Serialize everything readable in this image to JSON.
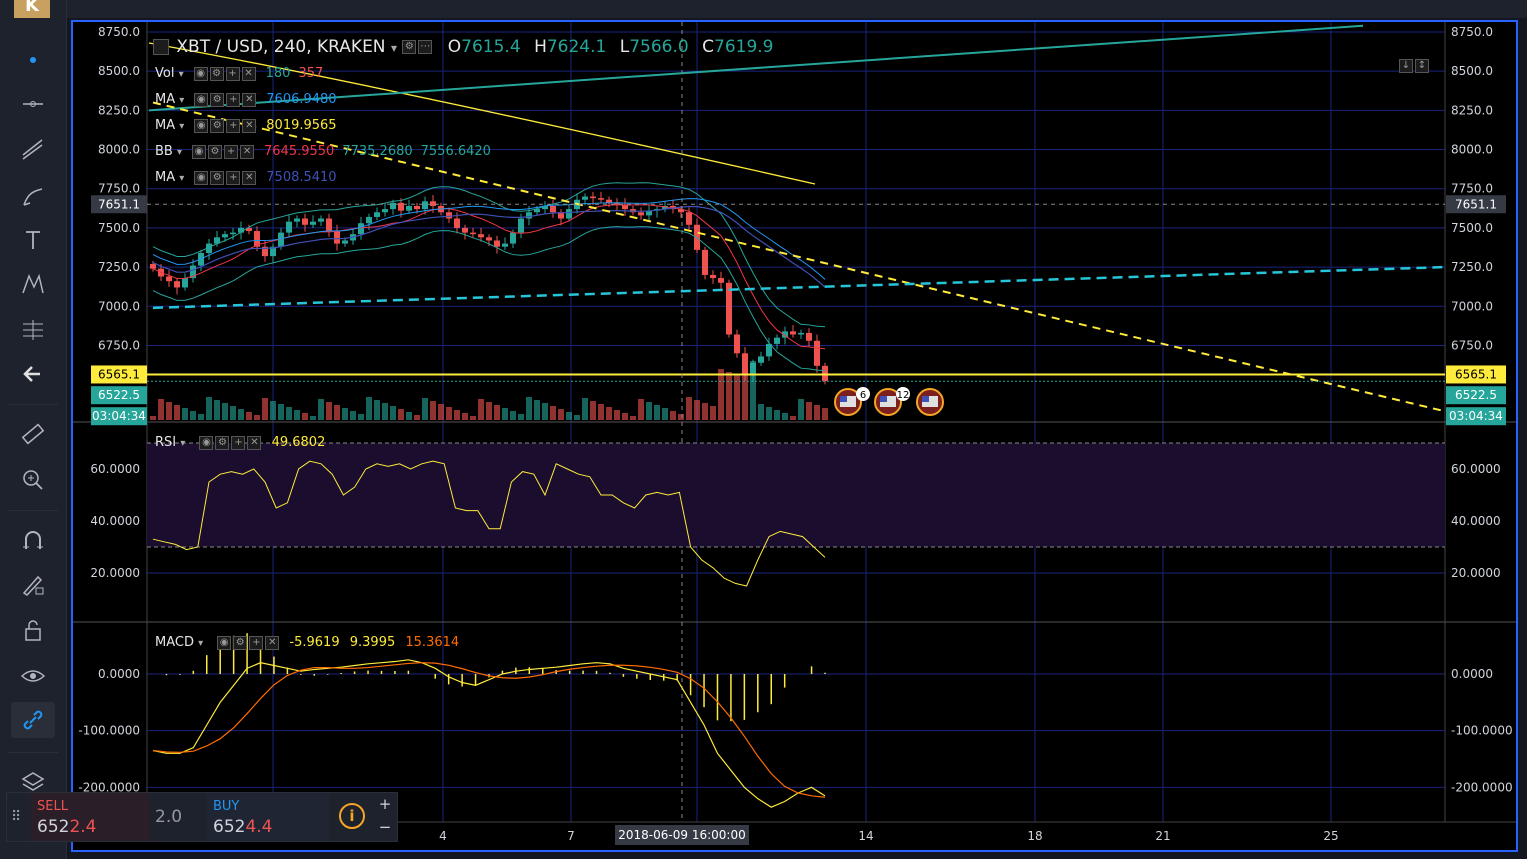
{
  "toolbar_left": {
    "logo_letter": "K",
    "tools": [
      "cursor-dot",
      "horizontal-line",
      "trend-lines",
      "brush",
      "text",
      "pattern",
      "fib",
      "back-arrow",
      "ruler",
      "zoom-in",
      "magnet",
      "draw-lock",
      "lock",
      "eye",
      "link",
      "layers"
    ]
  },
  "header": {
    "symbol": "XBT / USD, 240, KRAKEN",
    "o_label": "O",
    "o_value": "7615.4",
    "h_label": "H",
    "h_value": "7624.1",
    "l_label": "L",
    "l_value": "7566.0",
    "c_label": "C",
    "c_value": "7619.9"
  },
  "indicators": [
    {
      "name": "Vol",
      "values": [
        "180",
        "357"
      ],
      "colors": [
        "#26a69a",
        "#ef5350"
      ]
    },
    {
      "name": "MA",
      "values": [
        "7606.9480"
      ],
      "colors": [
        "#2196f3"
      ]
    },
    {
      "name": "MA",
      "values": [
        "8019.9565"
      ],
      "colors": [
        "#ffeb3b"
      ]
    },
    {
      "name": "BB",
      "values": [
        "7645.9550",
        "7735.2680",
        "7556.6420"
      ],
      "colors": [
        "#f23645",
        "#26a69a",
        "#26a69a"
      ]
    },
    {
      "name": "MA",
      "values": [
        "7508.5410"
      ],
      "colors": [
        "#3f51b5"
      ]
    }
  ],
  "price_axis": {
    "ticks": [
      "8750.0",
      "8500.0",
      "8250.0",
      "8000.0",
      "7750.0",
      "7500.0",
      "7250.0",
      "7000.0",
      "6750.0"
    ],
    "badges": [
      {
        "text": "7651.1",
        "kind": "crosshair"
      },
      {
        "text": "6565.1",
        "kind": "hline"
      },
      {
        "text": "6522.5",
        "kind": "last"
      },
      {
        "text": "03:04:34",
        "kind": "countdown"
      }
    ]
  },
  "rsi": {
    "name": "RSI",
    "value": "49.6802",
    "ticks": [
      "60.0000",
      "40.0000",
      "20.0000"
    ]
  },
  "macd": {
    "name": "MACD",
    "values": [
      "-5.9619",
      "9.3995",
      "15.3614"
    ],
    "ticks": [
      "0.0000",
      "-100.0000",
      "-200.0000"
    ]
  },
  "time_axis": {
    "labels": [
      "4",
      "7",
      "14",
      "18",
      "21",
      "25"
    ],
    "crosshair_label": "2018-06-09 16:00:00"
  },
  "events": [
    {
      "count": "6"
    },
    {
      "count": "12"
    },
    {
      "count": ""
    }
  ],
  "trade_panel": {
    "sell_label": "SELL",
    "sell_price_main": "652",
    "sell_price_tail": "2.4",
    "spread": "2.0",
    "buy_label": "BUY",
    "buy_price_main": "652",
    "buy_price_tail": "4.4",
    "plus": "+",
    "minus": "−",
    "info": "i"
  },
  "colors": {
    "up": "#26a69a",
    "down": "#ef5350",
    "rsi": "#ffeb3b",
    "macd": "#ffeb3b",
    "signal": "#ff6d00",
    "hline": "#ffeb3b",
    "cyan": "#26c6da"
  }
}
